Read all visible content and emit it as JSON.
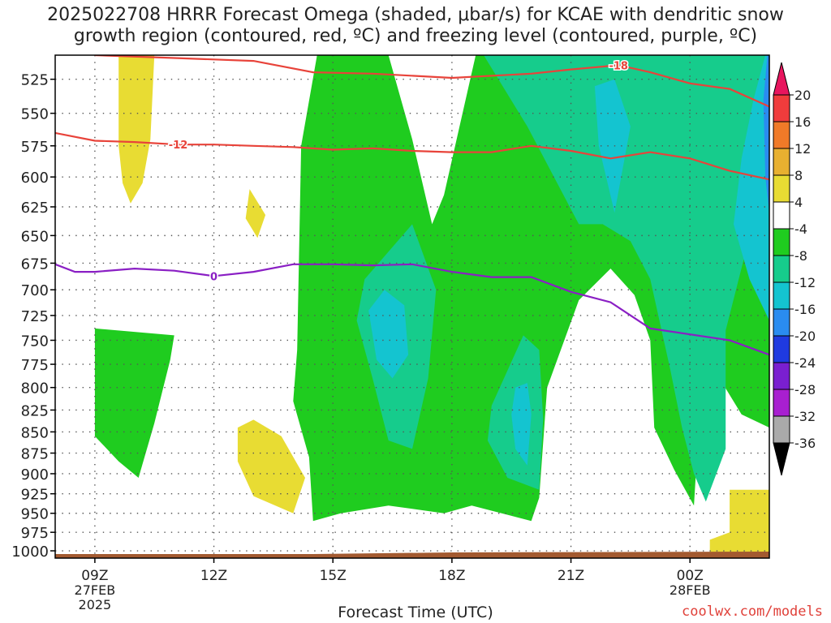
{
  "title_line1": "2025022708 HRRR Forecast Omega (shaded, μbar/s) for KCAE with dendritic snow",
  "title_line2": "growth region (contoured, red, ºC) and freezing level (contoured, purple, ºC)",
  "x_axis_title": "Forecast Time (UTC)",
  "credit": "coolwx.com/models",
  "chart_data": {
    "type": "heatmap",
    "x_ticks": [
      {
        "t": 9,
        "label": "09Z",
        "sub": [
          "27FEB",
          "2025"
        ]
      },
      {
        "t": 12,
        "label": "12Z",
        "sub": []
      },
      {
        "t": 15,
        "label": "15Z",
        "sub": []
      },
      {
        "t": 18,
        "label": "18Z",
        "sub": []
      },
      {
        "t": 21,
        "label": "21Z",
        "sub": []
      },
      {
        "t": 24,
        "label": "00Z",
        "sub": [
          "28FEB"
        ]
      }
    ],
    "xlim_hours": [
      8,
      26
    ],
    "y_ticks": [
      525,
      550,
      575,
      600,
      625,
      650,
      675,
      700,
      725,
      750,
      775,
      800,
      825,
      850,
      875,
      900,
      925,
      950,
      975,
      1000
    ],
    "ylim_mb": [
      508,
      1010
    ],
    "y_scale": "log-pressure",
    "grid": true,
    "colorbar": {
      "labels": [
        "20",
        "16",
        "12",
        "8",
        "4",
        "-4",
        "-8",
        "-12",
        "-16",
        "-20",
        "-24",
        "-28",
        "-32",
        "-36"
      ],
      "colors": [
        "#e8155e",
        "#f03c3c",
        "#f07a28",
        "#e8b030",
        "#e8dc33",
        "#ffffff",
        "#1fcc1f",
        "#16cc8c",
        "#14c4d0",
        "#2a8cf0",
        "#1f3ae0",
        "#7a1fd0",
        "#a81fd0",
        "#aaaaaa",
        "#000000"
      ]
    },
    "fills": [
      {
        "level": "4",
        "color": "#e8dc33",
        "points": [
          [
            9.6,
            508
          ],
          [
            10.5,
            508
          ],
          [
            10.4,
            570
          ],
          [
            10.2,
            605
          ],
          [
            9.9,
            622
          ],
          [
            9.7,
            605
          ],
          [
            9.6,
            575
          ]
        ]
      },
      {
        "level": "4",
        "color": "#e8dc33",
        "points": [
          [
            12.9,
            610
          ],
          [
            13.3,
            632
          ],
          [
            13.1,
            652
          ],
          [
            12.8,
            635
          ]
        ]
      },
      {
        "level": "4",
        "color": "#e8dc33",
        "points": [
          [
            12.6,
            845
          ],
          [
            13.0,
            836
          ],
          [
            13.7,
            855
          ],
          [
            14.3,
            905
          ],
          [
            14.0,
            950
          ],
          [
            13.0,
            928
          ],
          [
            12.6,
            885
          ]
        ]
      },
      {
        "level": "4",
        "color": "#e8dc33",
        "points": [
          [
            25.0,
            920
          ],
          [
            26.0,
            920
          ],
          [
            26.0,
            1010
          ],
          [
            24.5,
            1005
          ],
          [
            24.5,
            985
          ],
          [
            25.0,
            975
          ]
        ]
      },
      {
        "level": "-4",
        "color": "#1fcc1f",
        "points": [
          [
            9.0,
            738
          ],
          [
            11.0,
            745
          ],
          [
            10.9,
            770
          ],
          [
            10.5,
            840
          ],
          [
            10.1,
            905
          ],
          [
            9.6,
            885
          ],
          [
            9.0,
            855
          ]
        ]
      },
      {
        "level": "-4",
        "color": "#1fcc1f",
        "points": [
          [
            14.6,
            508
          ],
          [
            15.8,
            508
          ],
          [
            16.4,
            508
          ],
          [
            17.0,
            570
          ],
          [
            17.5,
            640
          ],
          [
            17.8,
            615
          ],
          [
            18.6,
            508
          ],
          [
            26.0,
            508
          ],
          [
            26.0,
            845
          ],
          [
            25.3,
            830
          ],
          [
            24.6,
            780
          ],
          [
            24.2,
            860
          ],
          [
            24.1,
            940
          ],
          [
            23.6,
            895
          ],
          [
            23.1,
            845
          ],
          [
            23.0,
            750
          ],
          [
            22.6,
            705
          ],
          [
            22.0,
            680
          ],
          [
            21.2,
            710
          ],
          [
            20.4,
            800
          ],
          [
            20.2,
            930
          ],
          [
            20.0,
            960
          ],
          [
            18.5,
            940
          ],
          [
            17.8,
            950
          ],
          [
            16.4,
            940
          ],
          [
            15.2,
            950
          ],
          [
            14.5,
            960
          ],
          [
            14.4,
            880
          ],
          [
            14.0,
            815
          ],
          [
            14.1,
            760
          ],
          [
            14.2,
            575
          ]
        ]
      },
      {
        "level": "-8",
        "color": "#16cc8c",
        "points": [
          [
            18.8,
            508
          ],
          [
            26.0,
            508
          ],
          [
            26.0,
            685
          ],
          [
            25.4,
            665
          ],
          [
            24.9,
            740
          ],
          [
            24.9,
            870
          ],
          [
            24.4,
            935
          ],
          [
            24.1,
            900
          ],
          [
            23.8,
            845
          ],
          [
            23.5,
            780
          ],
          [
            23.0,
            690
          ],
          [
            22.5,
            655
          ],
          [
            21.8,
            640
          ],
          [
            21.2,
            640
          ],
          [
            19.9,
            560
          ]
        ]
      },
      {
        "level": "-8",
        "color": "#16cc8c",
        "points": [
          [
            15.8,
            690
          ],
          [
            17.0,
            640
          ],
          [
            17.6,
            700
          ],
          [
            17.4,
            790
          ],
          [
            17.0,
            870
          ],
          [
            16.4,
            860
          ],
          [
            16.0,
            790
          ],
          [
            15.6,
            730
          ]
        ]
      },
      {
        "level": "-8",
        "color": "#16cc8c",
        "points": [
          [
            19.8,
            745
          ],
          [
            20.2,
            760
          ],
          [
            20.3,
            835
          ],
          [
            20.2,
            920
          ],
          [
            19.4,
            905
          ],
          [
            18.9,
            860
          ],
          [
            19.0,
            820
          ]
        ]
      },
      {
        "level": "-12",
        "color": "#14c4d0",
        "points": [
          [
            15.9,
            720
          ],
          [
            16.3,
            700
          ],
          [
            16.8,
            715
          ],
          [
            16.9,
            765
          ],
          [
            16.5,
            790
          ],
          [
            16.1,
            770
          ]
        ]
      },
      {
        "level": "-12",
        "color": "#14c4d0",
        "points": [
          [
            19.6,
            800
          ],
          [
            19.9,
            795
          ],
          [
            20.0,
            830
          ],
          [
            19.9,
            890
          ],
          [
            19.6,
            870
          ],
          [
            19.5,
            830
          ]
        ]
      },
      {
        "level": "-12",
        "color": "#14c4d0",
        "points": [
          [
            21.6,
            530
          ],
          [
            22.1,
            525
          ],
          [
            22.5,
            560
          ],
          [
            22.1,
            630
          ],
          [
            21.7,
            575
          ]
        ]
      },
      {
        "level": "-12",
        "color": "#14c4d0",
        "points": [
          [
            25.9,
            508
          ],
          [
            26.0,
            508
          ],
          [
            26.0,
            730
          ],
          [
            25.5,
            690
          ],
          [
            25.1,
            640
          ],
          [
            25.3,
            585
          ],
          [
            25.6,
            540
          ]
        ]
      },
      {
        "level": "-16",
        "color": "#2a8cf0",
        "points": [
          [
            25.95,
            508
          ],
          [
            26.0,
            508
          ],
          [
            26.0,
            630
          ],
          [
            25.9,
            600
          ],
          [
            25.85,
            540
          ]
        ]
      }
    ],
    "isotherms": [
      {
        "label": "-18",
        "color": "#e8433a",
        "label_at": 22.2,
        "points": [
          [
            9.0,
            508
          ],
          [
            11.0,
            510
          ],
          [
            13.0,
            512
          ],
          [
            14.5,
            520
          ],
          [
            16.0,
            521
          ],
          [
            18.0,
            524
          ],
          [
            20.0,
            521
          ],
          [
            21.0,
            518
          ],
          [
            22.2,
            515
          ],
          [
            23.0,
            520
          ],
          [
            24.0,
            528
          ],
          [
            25.0,
            532
          ],
          [
            26.0,
            545
          ]
        ]
      },
      {
        "label": "-12",
        "color": "#e8433a",
        "label_at": 11.1,
        "points": [
          [
            8.0,
            565
          ],
          [
            9.0,
            571
          ],
          [
            10.0,
            572
          ],
          [
            11.1,
            574
          ],
          [
            12.0,
            574
          ],
          [
            13.0,
            575
          ],
          [
            14.0,
            576
          ],
          [
            15.0,
            578
          ],
          [
            16.0,
            577
          ],
          [
            17.0,
            579
          ],
          [
            18.0,
            580
          ],
          [
            19.0,
            580
          ],
          [
            20.0,
            575
          ],
          [
            21.0,
            579
          ],
          [
            22.0,
            585
          ],
          [
            23.0,
            580
          ],
          [
            24.0,
            585
          ],
          [
            25.0,
            595
          ],
          [
            26.0,
            602
          ]
        ]
      },
      {
        "label": "0",
        "color": "#8a1fc4",
        "label_at": 12.0,
        "points": [
          [
            8.0,
            676
          ],
          [
            8.5,
            683
          ],
          [
            9.0,
            683
          ],
          [
            10.0,
            680
          ],
          [
            11.0,
            682
          ],
          [
            12.0,
            687
          ],
          [
            13.0,
            683
          ],
          [
            14.0,
            676
          ],
          [
            15.0,
            676
          ],
          [
            16.0,
            677
          ],
          [
            17.0,
            676
          ],
          [
            18.0,
            683
          ],
          [
            19.0,
            688
          ],
          [
            20.0,
            688
          ],
          [
            21.0,
            702
          ],
          [
            22.0,
            712
          ],
          [
            23.0,
            738
          ],
          [
            24.0,
            744
          ],
          [
            25.0,
            750
          ],
          [
            26.0,
            765
          ]
        ]
      }
    ],
    "terrain_color": "#a35a30"
  }
}
